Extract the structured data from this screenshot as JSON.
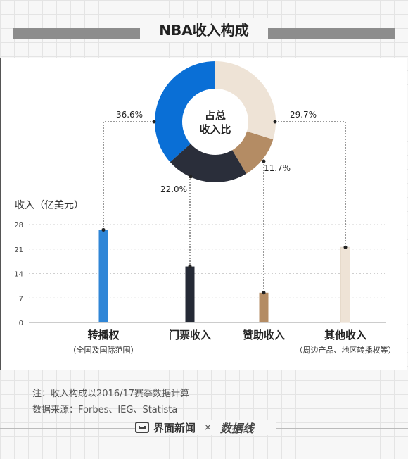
{
  "title": "NBA收入构成",
  "chart_data": {
    "type": "bar",
    "ylabel": "收入（亿美元）",
    "ylim": [
      0,
      28
    ],
    "yticks": [
      0,
      7,
      14,
      21,
      28
    ],
    "grid": true,
    "categories": [
      {
        "label": "转播权",
        "sublabel": "（全国及国际范围）",
        "value": 26.5,
        "color": "#2f86d7"
      },
      {
        "label": "门票收入",
        "sublabel": "",
        "value": 16,
        "color": "#252a36"
      },
      {
        "label": "赞助收入",
        "sublabel": "",
        "value": 8.5,
        "color": "#b48c64"
      },
      {
        "label": "其他收入",
        "sublabel": "（周边产品、地区转播权等）",
        "value": 21.5,
        "color": "#eee3d6"
      }
    ],
    "donut": {
      "center_label_1": "占总",
      "center_label_2": "收入比",
      "slices": [
        {
          "category": "转播权",
          "percent": 36.6,
          "label": "36.6%",
          "color": "#0a6fd6"
        },
        {
          "category": "门票收入",
          "percent": 22.0,
          "label": "22.0%",
          "color": "#2a2e3a"
        },
        {
          "category": "赞助收入",
          "percent": 11.7,
          "label": "11.7%",
          "color": "#b48c64"
        },
        {
          "category": "其他收入",
          "percent": 29.7,
          "label": "29.7%",
          "color": "#eee3d6"
        }
      ]
    }
  },
  "notes": {
    "note": "注：收入构成以2016/17赛季数据计算",
    "source": "数据来源：Forbes、IEG、Statista"
  },
  "footer": {
    "brand": "界面新闻",
    "times": "×",
    "partner": "数据线"
  }
}
